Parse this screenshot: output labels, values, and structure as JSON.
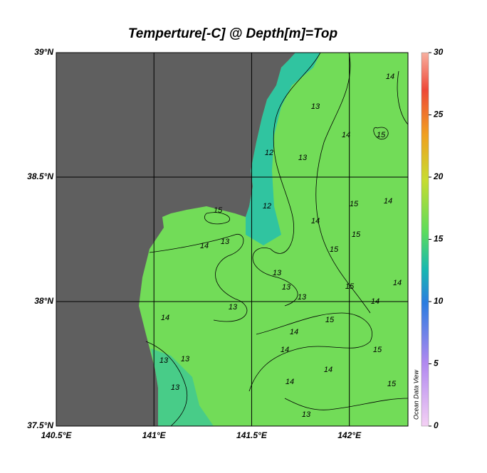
{
  "chart_data": {
    "type": "map",
    "title": "Temperture[-C] @ Depth[m]=Top",
    "xlim": [
      140.5,
      142.3
    ],
    "xticks": [
      {
        "value": 140.5,
        "label": "140.5°E"
      },
      {
        "value": 141,
        "label": "141°E"
      },
      {
        "value": 141.5,
        "label": "141.5°E"
      },
      {
        "value": 142,
        "label": "142°E"
      }
    ],
    "ylim": [
      37.5,
      39
    ],
    "yticks": [
      {
        "value": 37.5,
        "label": "37.5°N"
      },
      {
        "value": 38,
        "label": "38°N"
      },
      {
        "value": 38.5,
        "label": "38.5°N"
      },
      {
        "value": 39,
        "label": "39°N"
      }
    ],
    "grid": true,
    "colorbar": {
      "lim": [
        0,
        30
      ],
      "ticks": [
        0,
        5,
        10,
        15,
        20,
        25,
        30
      ]
    },
    "contour_labels": [
      14,
      13,
      14,
      15,
      13,
      12,
      14,
      12,
      15,
      15,
      14,
      15,
      14,
      13,
      15,
      13,
      13,
      15,
      13,
      14,
      14,
      13,
      14,
      15,
      14,
      14,
      15,
      13,
      13,
      14,
      14,
      13,
      15,
      13
    ],
    "watermark": "Ocean Data View"
  }
}
